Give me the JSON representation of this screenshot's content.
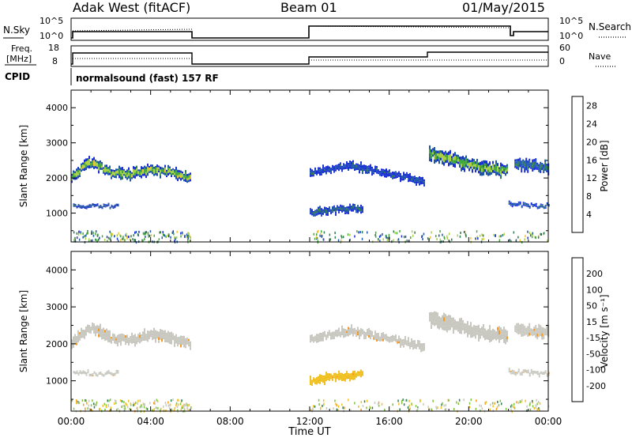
{
  "header": {
    "station": "Adak West (fitACF)",
    "beam": "Beam 01",
    "date": "01/May/2015"
  },
  "panel_labels": {
    "nsky": "N.Sky",
    "nsearch": "N.Search",
    "freq_top": "Freq.",
    "freq_unit": "[MHz]",
    "nave": "Nave",
    "cpid": "CPID",
    "cpid_value": "normalsound (fast) 157 RF"
  },
  "small_axes": {
    "noise_left": [
      "10^5",
      "10^0"
    ],
    "noise_right": [
      "10^5",
      "10^0"
    ],
    "freq_left": [
      "18",
      "8"
    ],
    "nave_right": [
      "60",
      "0"
    ]
  },
  "colors": {
    "power": [
      "#1a2fd6",
      "#1f56a8",
      "#2c7a4e",
      "#45a83a",
      "#a9cf45",
      "#f2c12c",
      "#f5a020",
      "#ee6a1a",
      "#e23a14",
      "#d9141c"
    ],
    "velocity": [
      "#2a3cc8",
      "#2f5bb0",
      "#2f7d4d",
      "#7fc43a",
      "#c8c8c0",
      "#f0c020",
      "#f59a20",
      "#e8561a",
      "#dd1f1a"
    ]
  },
  "chart_data": [
    {
      "type": "heatmap",
      "quantity": "power",
      "ylabel": "Slant Range [km]",
      "xlabel": "Time UT",
      "x_ticks": [
        "00:00",
        "04:00",
        "08:00",
        "12:00",
        "16:00",
        "20:00",
        "00:00"
      ],
      "xlim_hours": [
        0,
        24
      ],
      "y_ticks": [
        1000,
        2000,
        3000,
        4000
      ],
      "ylim": [
        180,
        4500
      ],
      "colorbar": {
        "label": "Power [dB]",
        "ticks": [
          4,
          8,
          12,
          16,
          20,
          24,
          28
        ],
        "range": [
          0,
          30
        ]
      },
      "echo_bands": [
        {
          "t_start": 0.0,
          "t_end": 6.0,
          "range_center_km": [
            2050,
            2450,
            2150,
            2100,
            2250,
            2150,
            2000
          ],
          "width_km": 300,
          "power_db": 17
        },
        {
          "t_start": 0.1,
          "t_end": 2.4,
          "range_center_km": [
            1200,
            1200
          ],
          "width_km": 90,
          "power_db": 6
        },
        {
          "t_start": 12.0,
          "t_end": 17.8,
          "range_center_km": [
            2150,
            2350,
            2150,
            1900
          ],
          "width_km": 220,
          "power_db": 5
        },
        {
          "t_start": 12.0,
          "t_end": 14.7,
          "range_center_km": [
            1000,
            1100,
            1150
          ],
          "width_km": 220,
          "power_db": 7
        },
        {
          "t_start": 18.0,
          "t_end": 21.9,
          "range_center_km": [
            2700,
            2500,
            2300,
            2200
          ],
          "width_km": 400,
          "power_db": 16
        },
        {
          "t_start": 22.3,
          "t_end": 24.0,
          "range_center_km": [
            2400,
            2300
          ],
          "width_km": 300,
          "power_db": 8
        },
        {
          "t_start": 22.0,
          "t_end": 24.0,
          "range_center_km": [
            1250,
            1200
          ],
          "width_km": 110,
          "power_db": 6
        }
      ]
    },
    {
      "type": "heatmap",
      "quantity": "velocity",
      "ylabel": "Slant Range [km]",
      "xlabel": "Time UT",
      "x_ticks": [
        "00:00",
        "04:00",
        "08:00",
        "12:00",
        "16:00",
        "20:00",
        "00:00"
      ],
      "xlim_hours": [
        0,
        24
      ],
      "y_ticks": [
        1000,
        2000,
        3000,
        4000
      ],
      "ylim": [
        180,
        4500
      ],
      "colorbar": {
        "label": "Velocity [m s⁻¹]",
        "ticks": [
          200,
          100,
          50,
          15,
          -15,
          -50,
          -100,
          -200
        ]
      },
      "echo_bands": [
        {
          "t_start": 0.0,
          "t_end": 6.0,
          "range_center_km": [
            2050,
            2450,
            2150,
            2100,
            2250,
            2150,
            2000
          ],
          "width_km": 300,
          "velocity": 0
        },
        {
          "t_start": 0.1,
          "t_end": 2.4,
          "range_center_km": [
            1200,
            1200
          ],
          "width_km": 90,
          "velocity": 0
        },
        {
          "t_start": 12.0,
          "t_end": 17.8,
          "range_center_km": [
            2150,
            2350,
            2150,
            1900
          ],
          "width_km": 220,
          "velocity": 0
        },
        {
          "t_start": 12.0,
          "t_end": 14.7,
          "range_center_km": [
            1000,
            1100,
            1150
          ],
          "width_km": 220,
          "velocity": -40
        },
        {
          "t_start": 18.0,
          "t_end": 21.9,
          "range_center_km": [
            2700,
            2500,
            2300,
            2200
          ],
          "width_km": 400,
          "velocity": 0
        },
        {
          "t_start": 22.3,
          "t_end": 24.0,
          "range_center_km": [
            2400,
            2300
          ],
          "width_km": 300,
          "velocity": 0
        },
        {
          "t_start": 22.0,
          "t_end": 24.0,
          "range_center_km": [
            1250,
            1200
          ],
          "width_km": 110,
          "velocity": 0
        }
      ]
    }
  ]
}
